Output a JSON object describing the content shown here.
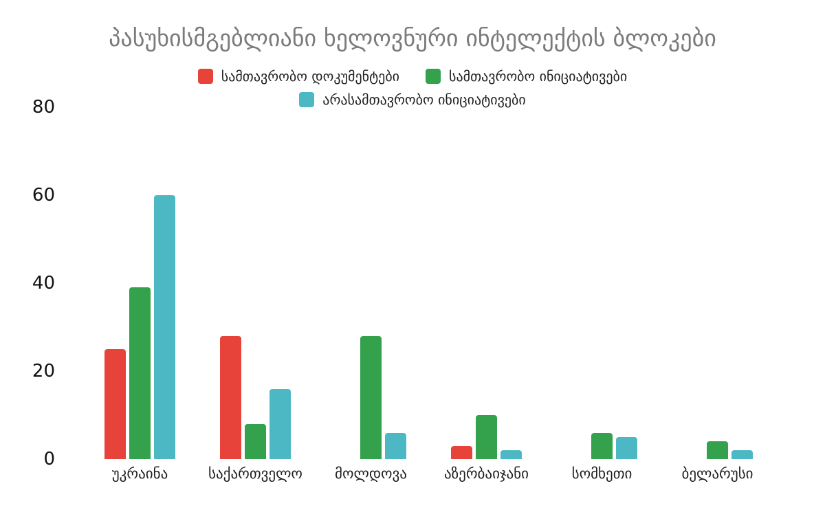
{
  "title": "პასუხისმგებლიანი ხელოვნური ინტელექტის ბლოკები",
  "colors": {
    "red": "#e8433a",
    "green": "#34a14c",
    "teal": "#4cb8c4",
    "title_gray": "#7b7b7b",
    "text_dark": "#1f1f1f",
    "background": "#ffffff"
  },
  "chart_data": {
    "type": "bar",
    "title": "პასუხისმგებლიანი ხელოვნური ინტელექტის ბლოკები",
    "categories": [
      "უკრაინა",
      "საქართველო",
      "მოლდოვა",
      "აზერბაიჯანი",
      "სომხეთი",
      "ბელარუსი"
    ],
    "series": [
      {
        "name": "სამთავრობო დოკუმენტები",
        "color_key": "red",
        "values": [
          25,
          28,
          0,
          3,
          0,
          0
        ]
      },
      {
        "name": "სამთავრობო ინიციატივები",
        "color_key": "green",
        "values": [
          39,
          8,
          28,
          10,
          6,
          4
        ]
      },
      {
        "name": "არასამთავრობო ინიციატივები",
        "color_key": "teal",
        "values": [
          60,
          16,
          6,
          2,
          5,
          2
        ]
      }
    ],
    "xlabel": "",
    "ylabel": "",
    "ylim": [
      0,
      80
    ],
    "yticks": [
      0,
      20,
      40,
      60,
      80
    ],
    "grid": false,
    "legend_position": "top-center"
  }
}
